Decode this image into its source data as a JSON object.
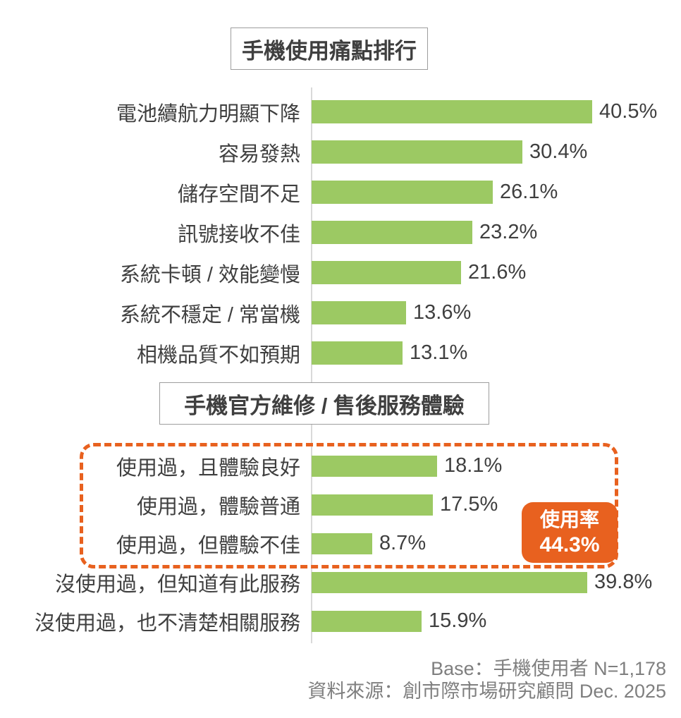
{
  "section1": {
    "title": "手機使用痛點排行"
  },
  "section2": {
    "title": "手機官方維修 / 售後服務體驗"
  },
  "chart_data": [
    {
      "type": "bar",
      "orientation": "horizontal",
      "title": "手機使用痛點排行",
      "categories": [
        "電池續航力明顯下降",
        "容易發熱",
        "儲存空間不足",
        "訊號接收不佳",
        "系統卡頓 / 效能變慢",
        "系統不穩定 / 常當機",
        "相機品質不如預期"
      ],
      "values": [
        40.5,
        30.4,
        26.1,
        23.2,
        21.6,
        13.6,
        13.1
      ],
      "value_labels": [
        "40.5%",
        "30.4%",
        "26.1%",
        "23.2%",
        "21.6%",
        "13.6%",
        "13.1%"
      ],
      "unit": "%",
      "xlim": [
        0,
        45
      ],
      "grid": false,
      "legend": null,
      "bar_color": "#9cc963",
      "value_label_position": "end-of-bar"
    },
    {
      "type": "bar",
      "orientation": "horizontal",
      "title": "手機官方維修 / 售後服務體驗",
      "categories": [
        "使用過，且體驗良好",
        "使用過，體驗普通",
        "使用過，但體驗不佳",
        "沒使用過，但知道有此服務",
        "沒使用過，也不清楚相關服務"
      ],
      "values": [
        18.1,
        17.5,
        8.7,
        39.8,
        15.9
      ],
      "value_labels": [
        "18.1%",
        "17.5%",
        "8.7%",
        "39.8%",
        "15.9%"
      ],
      "unit": "%",
      "xlim": [
        0,
        45
      ],
      "grid": false,
      "legend": null,
      "bar_color": "#9cc963",
      "value_label_position": "end-of-bar",
      "highlight": {
        "rows": [
          0,
          1,
          2
        ],
        "style": "orange-dashed-rounded-box",
        "badge_label": "使用率",
        "badge_value": "44.3%"
      }
    }
  ],
  "badge": {
    "title": "使用率",
    "value": "44.3%"
  },
  "footer": {
    "line1": "Base：手機使用者 N=1,178",
    "line2": "資料來源：創市際市場研究顧問 Dec. 2025"
  },
  "colors": {
    "bar_green": "#9cc963",
    "accent_orange": "#e8611f",
    "text_dark": "#3f3f3f",
    "title_box_border": "#9d9d9d",
    "axis_line": "#d9d9d9",
    "footer_gray": "#7f7f7f",
    "badge_text": "#ffffff",
    "background": "#ffffff"
  }
}
